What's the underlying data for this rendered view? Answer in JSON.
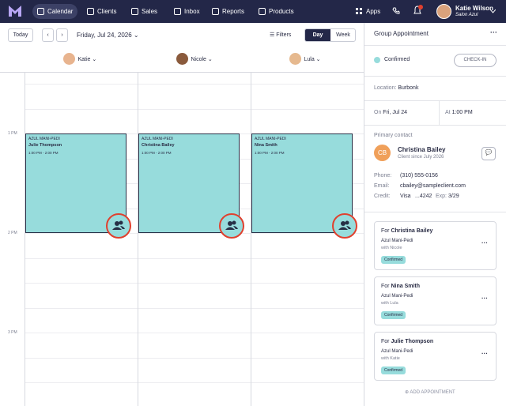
{
  "nav": {
    "items": [
      "Calendar",
      "Clients",
      "Sales",
      "Inbox",
      "Reports",
      "Products"
    ],
    "apps": "Apps",
    "user": {
      "name": "Katie Wilson",
      "business": "Salon Azul"
    }
  },
  "toolbar": {
    "today": "Today",
    "date": "Friday, Jul 24, 2026",
    "filters": "Filters",
    "views": [
      "Day",
      "Week"
    ]
  },
  "staff": [
    "Katie",
    "Nicole",
    "Lula"
  ],
  "time_labels": [
    "1 PM",
    "2 PM",
    "3 PM"
  ],
  "appointments": [
    {
      "service": "AZUL MANI-PEDI",
      "client": "Julie Thompson",
      "time": "1:00 PM - 2:00 PM"
    },
    {
      "service": "AZUL MANI-PEDI",
      "client": "Christina Bailey",
      "time": "1:00 PM - 2:00 PM"
    },
    {
      "service": "AZUL MANI-PEDI",
      "client": "Nina Smith",
      "time": "1:00 PM - 2:00 PM"
    }
  ],
  "panel": {
    "title": "Group Appointment",
    "status": "Confirmed",
    "check_in": "CHECK-IN",
    "location_label": "Location:",
    "location": "Burbonk",
    "date_label": "On",
    "date": "Fri, Jul 24",
    "time_label": "At",
    "time": "1:00 PM",
    "contact_heading": "Primary contact",
    "contact": {
      "initials": "CB",
      "name": "Christina Bailey",
      "since": "Client since July 2026",
      "phone_label": "Phone:",
      "phone": "(310) 555-0156",
      "email_label": "Email:",
      "email": "cbailey@sampleclient.com",
      "credit_label": "Credit:",
      "card": "Visa",
      "card_number": "...4242",
      "exp_label": "Exp:",
      "exp": "3/29"
    },
    "cards": [
      {
        "for_label": "For",
        "client": "Christina Bailey",
        "service": "Azul Mani-Pedi",
        "staff": "with Nicole",
        "status": "Confirmed"
      },
      {
        "for_label": "For",
        "client": "Nina Smith",
        "service": "Azul Mani-Pedi",
        "staff": "with Lula",
        "status": "Confirmed"
      },
      {
        "for_label": "For",
        "client": "Julie Thompson",
        "service": "Azul Mani-Pedi",
        "staff": "with Katie",
        "status": "Confirmed"
      }
    ],
    "add": "ADD APPOINTMENT"
  }
}
